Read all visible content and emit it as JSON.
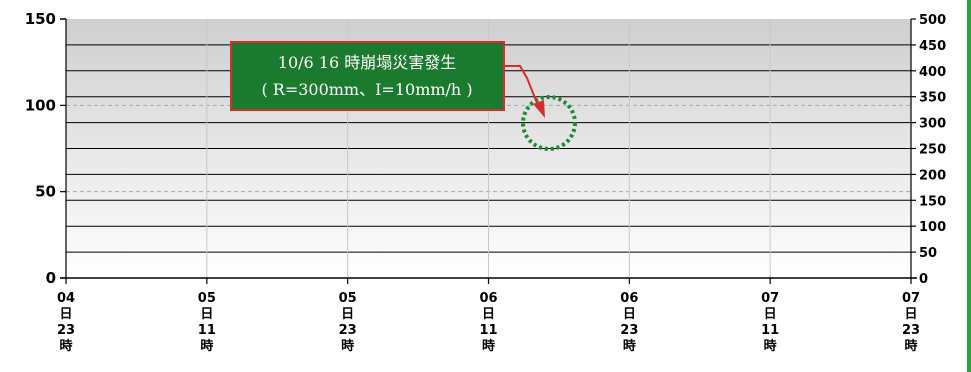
{
  "chart_data": {
    "type": "bar+line",
    "title": "",
    "x_tick_labels": [
      [
        "04",
        "日",
        "23",
        "時"
      ],
      [
        "05",
        "日",
        "11",
        "時"
      ],
      [
        "05",
        "日",
        "23",
        "時"
      ],
      [
        "06",
        "日",
        "11",
        "時"
      ],
      [
        "06",
        "日",
        "23",
        "時"
      ],
      [
        "07",
        "日",
        "11",
        "時"
      ],
      [
        "07",
        "日",
        "23",
        "時"
      ]
    ],
    "left_axis": {
      "ticks": [
        "150",
        "100",
        "50",
        "0"
      ],
      "range": [
        0,
        150
      ]
    },
    "right_axis": {
      "ticks": [
        "500",
        "450",
        "400",
        "350",
        "300",
        "250",
        "200",
        "150",
        "100",
        "50",
        "0"
      ],
      "range": [
        0,
        500
      ]
    },
    "x_range_hours": [
      0,
      72
    ],
    "grid": true,
    "hourly_rainfall": {
      "axis": "right",
      "color": "#3b7ddd",
      "values": [
        0,
        0,
        0,
        0,
        0,
        0,
        0,
        0,
        0,
        0,
        0,
        0,
        0,
        0,
        0,
        0,
        0,
        0,
        0,
        0,
        0,
        0,
        0,
        0,
        0,
        0,
        0,
        0,
        0,
        0,
        0,
        0,
        0,
        0,
        0,
        0,
        0,
        0,
        0,
        0,
        0,
        0,
        0,
        0,
        0,
        0,
        0,
        0,
        0,
        0,
        0,
        0,
        0,
        0,
        0,
        0,
        0,
        0,
        0,
        0,
        0,
        0,
        0,
        0,
        0,
        0,
        0,
        0,
        0,
        0,
        0,
        0
      ]
    },
    "cumulative_rainfall": {
      "axis": "right",
      "line_color": "#c0392b",
      "marker_color": "#5b2a7a",
      "x": [],
      "values": []
    },
    "annotation": {
      "line1": "10/6 16 時崩塌災害發生",
      "line2": "( R=300mm、I=10mm/h )",
      "background": "#1a7a2e",
      "border": "#d62d2d",
      "text_color": "#ffffff",
      "circle_color": "#1e8a2e",
      "arrow_color": "#d62d2d"
    }
  }
}
